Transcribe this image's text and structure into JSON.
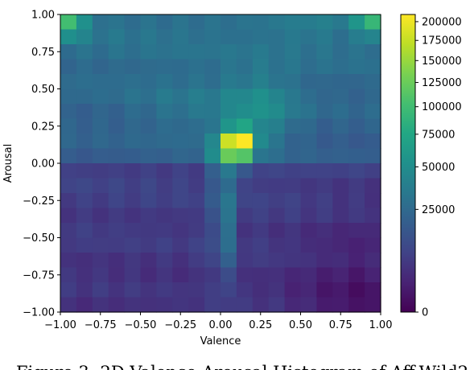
{
  "chart_data": {
    "type": "heatmap",
    "title": "",
    "xlabel": "Valence",
    "ylabel": "Arousal",
    "xlim": [
      -1.0,
      1.0
    ],
    "ylim": [
      -1.0,
      1.0
    ],
    "x_ticks": [
      "−1.00",
      "−0.75",
      "−0.50",
      "−0.25",
      "0.00",
      "0.25",
      "0.50",
      "0.75",
      "1.00"
    ],
    "y_ticks": [
      "1.00",
      "0.75",
      "0.50",
      "0.25",
      "0.00",
      "−0.25",
      "−0.50",
      "−0.75",
      "−1.00"
    ],
    "colorbar": {
      "scale": "sqrt",
      "min": 0,
      "max": 210000,
      "ticks": [
        "200000",
        "175000",
        "150000",
        "125000",
        "100000",
        "75000",
        "50000",
        "25000",
        "0"
      ],
      "colormap": "viridis"
    },
    "bins": 20,
    "grid": false,
    "caption": "Figure 3: 2D Valence-Arousal Histogram of Aff-Wild2"
  }
}
